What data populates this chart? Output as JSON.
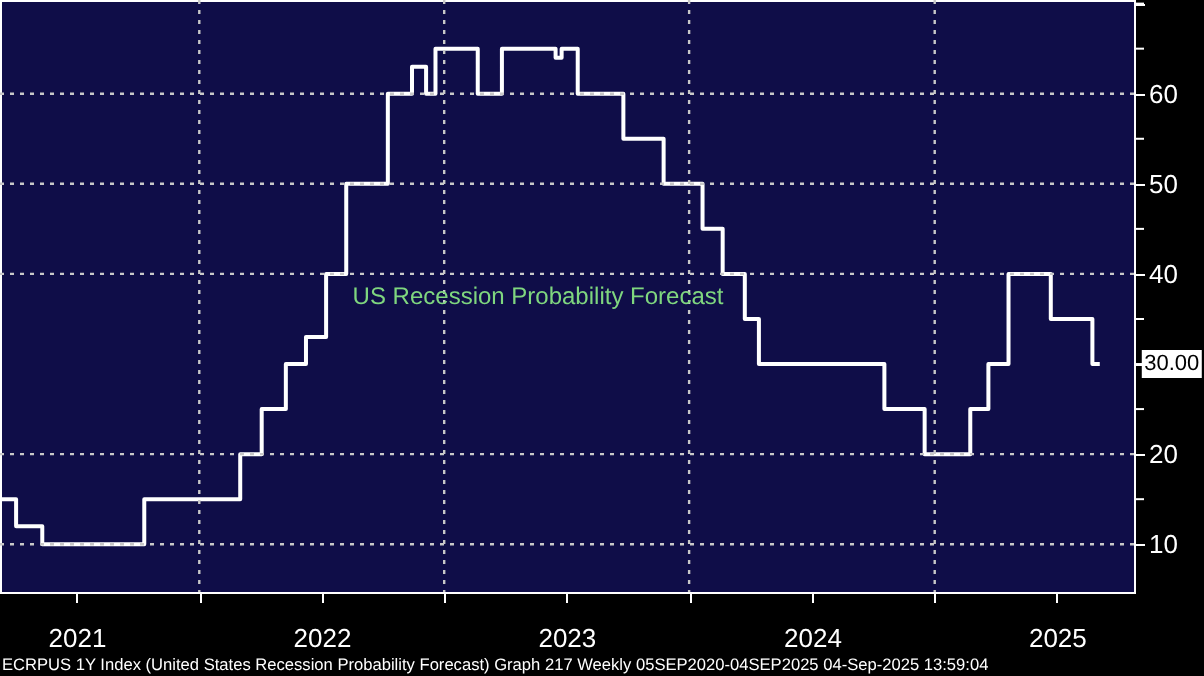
{
  "chart_data": {
    "type": "step",
    "title": "US Recession Probability Forecast",
    "x": [
      "2021-03-11",
      "2021-04-03",
      "2021-05-12",
      "2021-10-11",
      "2022-03-03",
      "2022-04-04",
      "2022-05-10",
      "2022-06-09",
      "2022-07-09",
      "2022-08-08",
      "2022-10-09",
      "2022-11-14",
      "2022-12-05",
      "2022-12-19",
      "2023-02-20",
      "2023-03-28",
      "2023-06-16",
      "2023-06-25",
      "2023-07-19",
      "2023-09-25",
      "2023-11-24",
      "2024-01-21",
      "2024-02-20",
      "2024-03-24",
      "2024-04-14",
      "2024-10-18",
      "2024-12-17",
      "2025-02-23",
      "2025-03-22",
      "2025-04-21",
      "2025-06-23",
      "2025-08-24",
      "2025-09-04"
    ],
    "series": [
      {
        "color": "#ffffff",
        "values": [
          15,
          12,
          10,
          15,
          20,
          25,
          30,
          33,
          40,
          50,
          60,
          63,
          60,
          65,
          60,
          65,
          64,
          65,
          60,
          55,
          50,
          45,
          40,
          35,
          30,
          25,
          20,
          25,
          30,
          40,
          35,
          30,
          30
        ]
      }
    ],
    "xlim": [
      "2021-03-10",
      "2025-10-25"
    ],
    "xticks": [
      {
        "value": "2021-07-02",
        "label": "2021"
      },
      {
        "value": "2022-01-01",
        "label": null
      },
      {
        "value": "2022-07-02",
        "label": "2022"
      },
      {
        "value": "2023-01-01",
        "label": null
      },
      {
        "value": "2023-07-02",
        "label": "2023"
      },
      {
        "value": "2024-01-01",
        "label": null
      },
      {
        "value": "2024-07-02",
        "label": "2024"
      },
      {
        "value": "2025-01-01",
        "label": null
      },
      {
        "value": "2025-07-02",
        "label": "2025"
      }
    ],
    "ylim": [
      4.7,
      70.4
    ],
    "yticks": [
      10,
      {
        "value": 15,
        "label": null
      },
      20,
      {
        "value": 25,
        "label": null
      },
      {
        "value": 30,
        "label": null
      },
      {
        "value": 35,
        "label": null
      },
      40,
      {
        "value": 45,
        "label": null
      },
      50,
      {
        "value": 55,
        "label": null
      },
      60,
      {
        "value": 65,
        "label": null
      },
      {
        "value": 70,
        "label": null
      }
    ],
    "grid": true,
    "marker": "none",
    "line_style": "solid",
    "annotations": [
      {
        "text": "30.00",
        "x": "2025-09-04",
        "y": 30
      },
      "ECRPUS 1Y Index (United States Recession Probability Forecast) Graph 217  Weekly 05SEP2020-04SEP2025   04-Sep-2025 13:59:04"
    ]
  }
}
